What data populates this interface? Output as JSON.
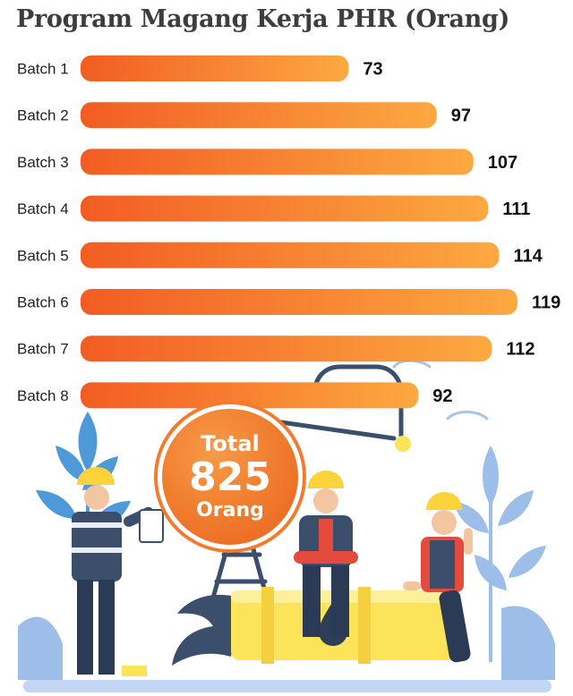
{
  "title": "Program Magang Kerja PHR (Orang)",
  "chart_data": {
    "type": "bar",
    "orientation": "horizontal",
    "title": "Program Magang Kerja PHR (Orang)",
    "categories": [
      "Batch 1",
      "Batch 2",
      "Batch 3",
      "Batch 4",
      "Batch 5",
      "Batch 6",
      "Batch 7",
      "Batch 8"
    ],
    "values": [
      73,
      97,
      107,
      111,
      114,
      119,
      112,
      92
    ],
    "xlim": [
      0,
      119
    ],
    "grid": false,
    "legend": "none",
    "bar_gradient": [
      "#f25c23",
      "#fca941"
    ]
  },
  "total": {
    "label": "Total",
    "value": "825",
    "unit": "Orang"
  },
  "colors": {
    "title": "#3d3d3d",
    "badge": "#f47b2d",
    "leaf": "#4e9ad8",
    "pipe": "#fbe45a",
    "worker_uniform": "#3b4f6d",
    "helmet": "#fcd33b"
  },
  "icons": [
    "oil-drop-icon"
  ]
}
